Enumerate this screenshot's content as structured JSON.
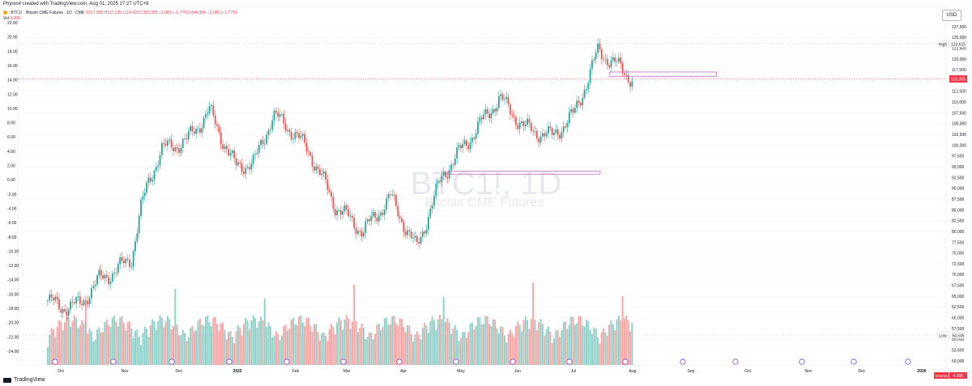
{
  "credit": "Phyres4 created with TradingView.com, Aug 01, 2025 17:27 UTC+8",
  "header": {
    "symbol": "BTC1! · Bitcoin CME Futures · 1D · CME",
    "ohlc": "O117,055 H117,135 L114,420 C115,355 −2,080 (−1.77%)",
    "vol_label": "Vol",
    "vol_value": "4.35K",
    "vol2": "Vol4.35K −2,080 (−1.77%)"
  },
  "currency_button": "USD",
  "watermark": {
    "symbol": "BTC1!, 1D",
    "name": "Bitcoin CME Futures"
  },
  "footer_logo": "TradingView",
  "price_labels": {
    "high_tag": "High",
    "high_value": "123,615",
    "current_value": "115,355",
    "low_tag": "Low",
    "low_value": "54,545",
    "volume_tag": "Volume",
    "volume_value": "4.35K"
  },
  "colors": {
    "up": "#26a69a",
    "down": "#ef5350",
    "up_vol": "#8fd2c9",
    "down_vol": "#f7a6a5",
    "zone": "#c06fc6",
    "accent": "#7b4bd1"
  },
  "chart_data": {
    "type": "candlestick",
    "title": "BTC1!, 1D",
    "subtitle": "Bitcoin CME Futures",
    "right_axis": {
      "ticks": [
        "127,500",
        "125,000",
        "122,500",
        "120,000",
        "117,500",
        "115,000",
        "112,500",
        "110,000",
        "107,500",
        "105,000",
        "102,500",
        "100,000",
        "97,500",
        "95,000",
        "92,500",
        "90,000",
        "87,500",
        "85,000",
        "82,500",
        "80,000",
        "77,500",
        "75,000",
        "72,500",
        "70,000",
        "67,500",
        "65,000",
        "62,500",
        "60,000",
        "57,500",
        "55,000",
        "52,500",
        "50,000"
      ],
      "ylim": [
        50000,
        127500
      ]
    },
    "left_axis": {
      "ticks": [
        "22.00",
        "20.00",
        "18.00",
        "16.00",
        "14.00",
        "12.00",
        "10.00",
        "8.00",
        "6.00",
        "4.00",
        "2.00",
        "0.00",
        "-2.00",
        "-4.00",
        "-6.00",
        "-8.00",
        "-10.00",
        "-12.00",
        "-14.00",
        "-16.00",
        "-18.00",
        "-20.00",
        "-22.00",
        "-24.00"
      ]
    },
    "x_axis": {
      "ticks": [
        "Oct",
        "Nov",
        "Dec",
        "2025",
        "Feb",
        "Mar",
        "Apr",
        "May",
        "Jun",
        "Jul",
        "Aug",
        "Sep",
        "Oct",
        "Nov",
        "Dec",
        "2026"
      ]
    },
    "close_path": [
      {
        "t": "Sep 24",
        "c": 64000
      },
      {
        "t": "Oct 1",
        "c": 62500
      },
      {
        "t": "Oct 10",
        "c": 63000
      },
      {
        "t": "Oct 20",
        "c": 69000
      },
      {
        "t": "Oct 28",
        "c": 71000
      },
      {
        "t": "Nov 5",
        "c": 74000
      },
      {
        "t": "Nov 10",
        "c": 85000
      },
      {
        "t": "Nov 15",
        "c": 92000
      },
      {
        "t": "Nov 22",
        "c": 99000
      },
      {
        "t": "Dec 5",
        "c": 101000
      },
      {
        "t": "Dec 17",
        "c": 108000
      },
      {
        "t": "Dec 31",
        "c": 95000
      },
      {
        "t": "Jan 10",
        "c": 96000
      },
      {
        "t": "Jan 20",
        "c": 107000
      },
      {
        "t": "Jan 31",
        "c": 103000
      },
      {
        "t": "Feb 10",
        "c": 98000
      },
      {
        "t": "Feb 25",
        "c": 86000
      },
      {
        "t": "Mar 10",
        "c": 80000
      },
      {
        "t": "Mar 25",
        "c": 88000
      },
      {
        "t": "Apr 8",
        "c": 76000
      },
      {
        "t": "Apr 22",
        "c": 93000
      },
      {
        "t": "May 10",
        "c": 104000
      },
      {
        "t": "May 22",
        "c": 111000
      },
      {
        "t": "Jun 5",
        "c": 104000
      },
      {
        "t": "Jun 20",
        "c": 102000
      },
      {
        "t": "Jul 1",
        "c": 107000
      },
      {
        "t": "Jul 10",
        "c": 117000
      },
      {
        "t": "Jul 14",
        "c": 122000
      },
      {
        "t": "Jul 25",
        "c": 118000
      },
      {
        "t": "Aug 1",
        "c": 115355
      }
    ],
    "zones": [
      {
        "label": "zone-upper",
        "from": "Jul 20",
        "to": "Sep 15",
        "y_top": 117000,
        "y_bottom": 116000
      },
      {
        "label": "zone-lower",
        "from": "Apr 25",
        "to": "Jul 15",
        "y_top": 94000,
        "y_bottom": 93300
      }
    ],
    "high": 123615,
    "low": 54545,
    "last": 115355,
    "last_volume": "4.35K"
  }
}
